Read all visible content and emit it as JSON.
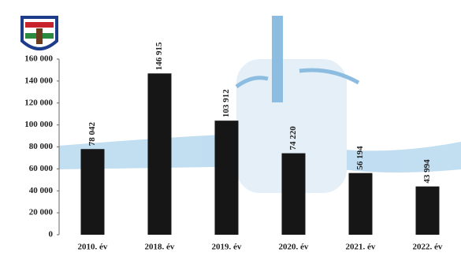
{
  "chart_data": {
    "type": "bar",
    "categories": [
      "2010. év",
      "2018. év",
      "2019. év",
      "2020. év",
      "2021. év",
      "2022. év"
    ],
    "values": [
      78042,
      146915,
      103912,
      74220,
      56194,
      43994
    ],
    "value_labels": [
      "78 042",
      "146 915",
      "103 912",
      "74 220",
      "56 194",
      "43 994"
    ],
    "color": "#161616",
    "ylim": [
      0,
      160000
    ],
    "yticks": [
      0,
      {
        "value": 20000,
        "label": "20 000"
      },
      {
        "value": 40000,
        "label": "40 000"
      },
      {
        "value": 60000,
        "label": "60 000"
      },
      {
        "value": 80000,
        "label": "80 000"
      },
      {
        "value": 100000,
        "label": "100 000"
      },
      {
        "value": 120000,
        "label": "120 000"
      },
      {
        "value": 140000,
        "label": "140 000"
      },
      {
        "value": 160000,
        "label": "160 000"
      }
    ],
    "grid": false
  }
}
